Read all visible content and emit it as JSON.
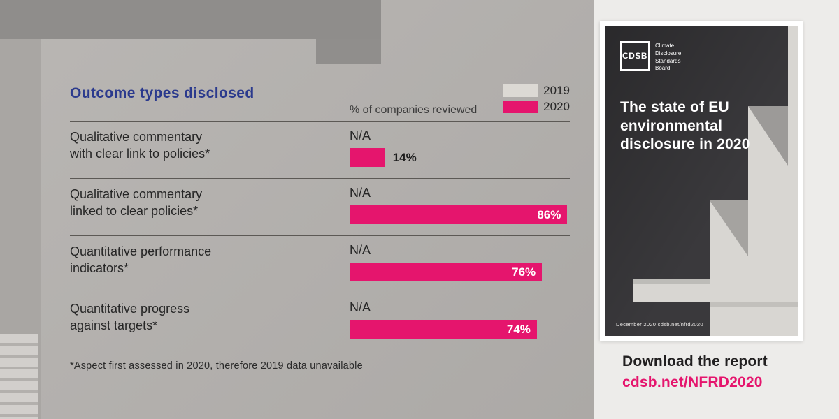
{
  "colors": {
    "accent_pink": "#e5156d",
    "title_navy": "#2b3a8d",
    "legend_2019_swatch": "#dcd9d4",
    "left_background": "#b5b2af",
    "right_panel_background": "#edecea",
    "cover_background": "#3a393c"
  },
  "chart": {
    "title": "Outcome types disclosed",
    "subtitle": "% of companies reviewed",
    "legend": [
      {
        "label": "2019"
      },
      {
        "label": "2020"
      }
    ],
    "rows": [
      {
        "label": "Qualitative commentary\nwith clear link to policies*",
        "na": "N/A",
        "value_label": "14%"
      },
      {
        "label": "Qualitative commentary\nlinked to clear policies*",
        "na": "N/A",
        "value_label": "86%"
      },
      {
        "label": "Quantitative performance\nindicators*",
        "na": "N/A",
        "value_label": "76%"
      },
      {
        "label": "Quantitative progress\nagainst targets*",
        "na": "N/A",
        "value_label": "74%"
      }
    ],
    "footnote": "*Aspect first assessed in 2020, therefore 2019 data unavailable"
  },
  "chart_data": {
    "type": "bar",
    "orientation": "horizontal",
    "title": "Outcome types disclosed",
    "unit": "% of companies reviewed",
    "categories": [
      "Qualitative commentary with clear link to policies*",
      "Qualitative commentary linked to clear policies*",
      "Quantitative performance indicators*",
      "Quantitative progress against targets*"
    ],
    "series": [
      {
        "name": "2019",
        "values": [
          null,
          null,
          null,
          null
        ],
        "display": "N/A"
      },
      {
        "name": "2020",
        "values": [
          14,
          86,
          76,
          74
        ]
      }
    ],
    "xlim": [
      0,
      100
    ],
    "grid": false,
    "legend_position": "top-right",
    "footnote": "*Aspect first assessed in 2020, therefore 2019 data unavailable"
  },
  "cover": {
    "logo": "CDSB",
    "logo_caption": "Climate\nDisclosure\nStandards\nBoard",
    "title": "The state of EU\nenvironmental\ndisclosure in 2020",
    "footer": "December 2020  cdsb.net/nfrd2020"
  },
  "cta": {
    "heading": "Download the report",
    "link": "cdsb.net/NFRD2020"
  }
}
